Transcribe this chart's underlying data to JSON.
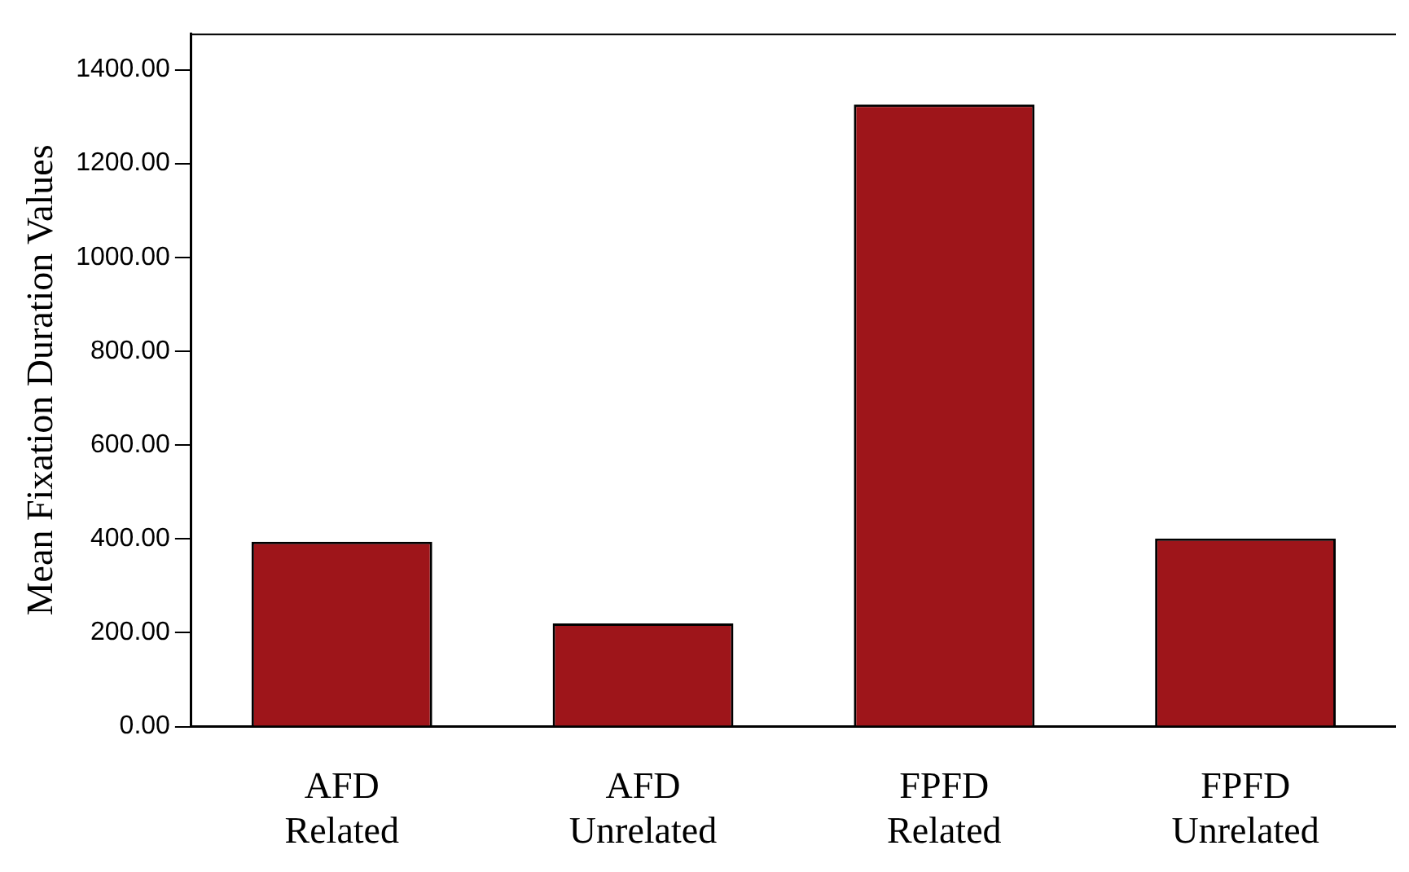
{
  "chart_data": {
    "type": "bar",
    "ylabel": "Mean Fixation Duration Values",
    "categories": [
      "AFD Related",
      "AFD Unrelated",
      "FPFD Related",
      "FPFD Unrelated"
    ],
    "values": [
      394,
      220,
      1326,
      401
    ],
    "color": "#9e151a",
    "ylim": [
      0,
      1477
    ],
    "yticks": [
      {
        "value": 0,
        "label": "0.00"
      },
      {
        "value": 200,
        "label": "200.00"
      },
      {
        "value": 400,
        "label": "400.00"
      },
      {
        "value": 600,
        "label": "600.00"
      },
      {
        "value": 800,
        "label": "800.00"
      },
      {
        "value": 1000,
        "label": "1000.00"
      },
      {
        "value": 1200,
        "label": "1200.00"
      },
      {
        "value": 1400,
        "label": "1400.00"
      }
    ],
    "grid": false,
    "legend": false
  }
}
